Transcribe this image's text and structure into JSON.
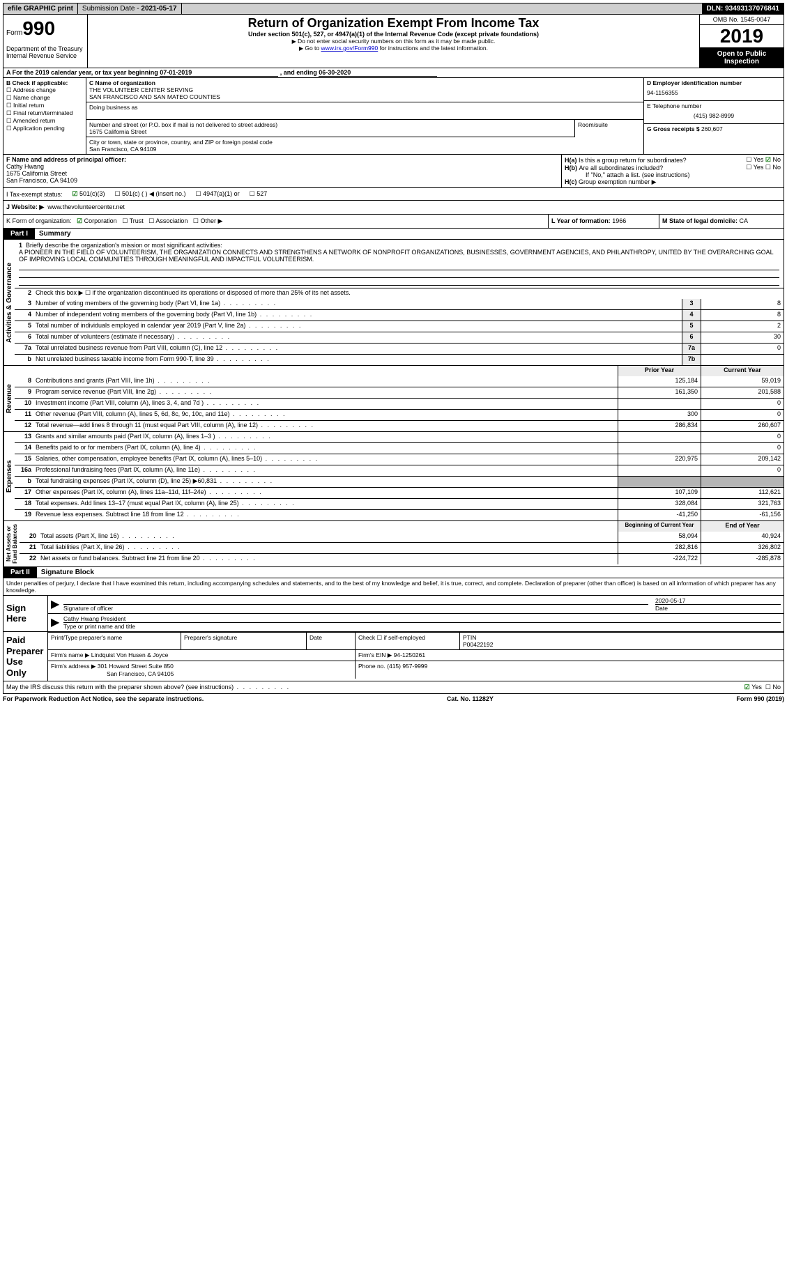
{
  "topbar": {
    "efile": "efile GRAPHIC print",
    "sub_label": "Submission Date -",
    "sub_date": "2021-05-17",
    "dln_label": "DLN:",
    "dln": "93493137076841"
  },
  "header": {
    "form_word": "Form",
    "form_num": "990",
    "dept": "Department of the Treasury\nInternal Revenue Service",
    "title": "Return of Organization Exempt From Income Tax",
    "sub1": "Under section 501(c), 527, or 4947(a)(1) of the Internal Revenue Code (except private foundations)",
    "sub2": "Do not enter social security numbers on this form as it may be made public.",
    "sub3_pre": "Go to ",
    "sub3_link": "www.irs.gov/Form990",
    "sub3_post": " for instructions and the latest information.",
    "omb": "OMB No. 1545-0047",
    "year": "2019",
    "opi": "Open to Public Inspection"
  },
  "line_a": {
    "text_pre": "A  For the 2019 calendar year, or tax year beginning ",
    "begin": "07-01-2019",
    "mid": " , and ending ",
    "end": "06-30-2020"
  },
  "box_b": {
    "hdr": "B Check if applicable:",
    "items": [
      "Address change",
      "Name change",
      "Initial return",
      "Final return/terminated",
      "Amended return",
      "Application pending"
    ]
  },
  "box_c": {
    "hdr": "C Name of organization",
    "name1": "THE VOLUNTEER CENTER SERVING",
    "name2": "SAN FRANCISCO AND SAN MATEO COUNTIES",
    "dba_hdr": "Doing business as",
    "street_hdr": "Number and street (or P.O. box if mail is not delivered to street address)",
    "room_hdr": "Room/suite",
    "street": "1675 California Street",
    "city_hdr": "City or town, state or province, country, and ZIP or foreign postal code",
    "city": "San Francisco, CA  94109"
  },
  "box_d": {
    "hdr": "D Employer identification number",
    "val": "94-1156355"
  },
  "box_e": {
    "hdr": "E Telephone number",
    "val": "(415) 982-8999"
  },
  "box_g": {
    "hdr": "G Gross receipts $",
    "val": "260,607"
  },
  "box_f": {
    "hdr": "F  Name and address of principal officer:",
    "name": "Cathy Hwang",
    "addr1": "1675 California Street",
    "addr2": "San Francisco, CA  94109"
  },
  "box_h": {
    "a_q": "Is this a group return for subordinates?",
    "a_lbl": "H(a)",
    "b_lbl": "H(b)",
    "b_q": "Are all subordinates included?",
    "b_note": "If \"No,\" attach a list. (see instructions)",
    "c_lbl": "H(c)",
    "c_q": "Group exemption number ▶",
    "yes": "Yes",
    "no": "No"
  },
  "tax_exempt": {
    "lbl": "I   Tax-exempt status:",
    "opts": [
      "501(c)(3)",
      "501(c) (  ) ◀ (insert no.)",
      "4947(a)(1) or",
      "527"
    ]
  },
  "website": {
    "lbl": "J   Website: ▶",
    "val": "www.thevolunteercenter.net"
  },
  "korg": {
    "lbl": "K Form of organization:",
    "opts": [
      "Corporation",
      "Trust",
      "Association",
      "Other ▶"
    ],
    "l_lbl": "L Year of formation:",
    "l_val": "1966",
    "m_lbl": "M State of legal domicile:",
    "m_val": "CA"
  },
  "part1": {
    "hdr": "Part I",
    "title": "Summary",
    "q1_pre": "Briefly describe the organization's mission or most significant activities:",
    "mission": "A PIONEER IN THE FIELD OF VOLUNTEERISM, THE ORGANIZATION CONNECTS AND STRENGTHENS A NETWORK OF NONPROFIT ORGANIZATIONS, BUSINESSES, GOVERNMENT AGENCIES, AND PHILANTHROPY, UNITED BY THE OVERARCHING GOAL OF IMPROVING LOCAL COMMUNITIES THROUGH MEANINGFUL AND IMPACTFUL VOLUNTEERISM.",
    "q2": "Check this box ▶ ☐  if the organization discontinued its operations or disposed of more than 25% of its net assets.",
    "rows_ag": [
      {
        "n": "3",
        "t": "Number of voting members of the governing body (Part VI, line 1a)",
        "box": "3",
        "v": "8"
      },
      {
        "n": "4",
        "t": "Number of independent voting members of the governing body (Part VI, line 1b)",
        "box": "4",
        "v": "8"
      },
      {
        "n": "5",
        "t": "Total number of individuals employed in calendar year 2019 (Part V, line 2a)",
        "box": "5",
        "v": "2"
      },
      {
        "n": "6",
        "t": "Total number of volunteers (estimate if necessary)",
        "box": "6",
        "v": "30"
      },
      {
        "n": "7a",
        "t": "Total unrelated business revenue from Part VIII, column (C), line 12",
        "box": "7a",
        "v": "0"
      },
      {
        "n": "b",
        "t": "Net unrelated business taxable income from Form 990-T, line 39",
        "box": "7b",
        "v": ""
      }
    ],
    "col_hdr": {
      "prior": "Prior Year",
      "current": "Current Year"
    },
    "rev": [
      {
        "n": "8",
        "t": "Contributions and grants (Part VIII, line 1h)",
        "p": "125,184",
        "c": "59,019"
      },
      {
        "n": "9",
        "t": "Program service revenue (Part VIII, line 2g)",
        "p": "161,350",
        "c": "201,588"
      },
      {
        "n": "10",
        "t": "Investment income (Part VIII, column (A), lines 3, 4, and 7d )",
        "p": "",
        "c": "0"
      },
      {
        "n": "11",
        "t": "Other revenue (Part VIII, column (A), lines 5, 6d, 8c, 9c, 10c, and 11e)",
        "p": "300",
        "c": "0"
      },
      {
        "n": "12",
        "t": "Total revenue—add lines 8 through 11 (must equal Part VIII, column (A), line 12)",
        "p": "286,834",
        "c": "260,607"
      }
    ],
    "exp": [
      {
        "n": "13",
        "t": "Grants and similar amounts paid (Part IX, column (A), lines 1–3 )",
        "p": "",
        "c": "0"
      },
      {
        "n": "14",
        "t": "Benefits paid to or for members (Part IX, column (A), line 4)",
        "p": "",
        "c": "0"
      },
      {
        "n": "15",
        "t": "Salaries, other compensation, employee benefits (Part IX, column (A), lines 5–10)",
        "p": "220,975",
        "c": "209,142"
      },
      {
        "n": "16a",
        "t": "Professional fundraising fees (Part IX, column (A), line 11e)",
        "p": "",
        "c": "0"
      },
      {
        "n": "b",
        "t": "Total fundraising expenses (Part IX, column (D), line 25) ▶60,831",
        "p": "shade",
        "c": "shade"
      },
      {
        "n": "17",
        "t": "Other expenses (Part IX, column (A), lines 11a–11d, 11f–24e)",
        "p": "107,109",
        "c": "112,621"
      },
      {
        "n": "18",
        "t": "Total expenses. Add lines 13–17 (must equal Part IX, column (A), line 25)",
        "p": "328,084",
        "c": "321,763"
      },
      {
        "n": "19",
        "t": "Revenue less expenses. Subtract line 18 from line 12",
        "p": "-41,250",
        "c": "-61,156"
      }
    ],
    "na_hdr": {
      "prior": "Beginning of Current Year",
      "current": "End of Year"
    },
    "na": [
      {
        "n": "20",
        "t": "Total assets (Part X, line 16)",
        "p": "58,094",
        "c": "40,924"
      },
      {
        "n": "21",
        "t": "Total liabilities (Part X, line 26)",
        "p": "282,816",
        "c": "326,802"
      },
      {
        "n": "22",
        "t": "Net assets or fund balances. Subtract line 21 from line 20",
        "p": "-224,722",
        "c": "-285,878"
      }
    ],
    "vlabels": {
      "ag": "Activities & Governance",
      "rev": "Revenue",
      "exp": "Expenses",
      "na": "Net Assets or\nFund Balances"
    }
  },
  "part2": {
    "hdr": "Part II",
    "title": "Signature Block",
    "perjury": "Under penalties of perjury, I declare that I have examined this return, including accompanying schedules and statements, and to the best of my knowledge and belief, it is true, correct, and complete. Declaration of preparer (other than officer) is based on all information of which preparer has any knowledge.",
    "sign_here": "Sign Here",
    "sig_officer": "Signature of officer",
    "date": "Date",
    "sig_date": "2020-05-17",
    "name_title_lbl": "Type or print name and title",
    "name_title": "Cathy Hwang  President",
    "paid": "Paid Preparer Use Only",
    "p_name_hdr": "Print/Type preparer's name",
    "p_sig_hdr": "Preparer's signature",
    "p_date_hdr": "Date",
    "p_check": "Check ☐ if self-employed",
    "ptin_hdr": "PTIN",
    "ptin": "P00422192",
    "firm_name_lbl": "Firm's name    ▶",
    "firm_name": "Lindquist Von Husen & Joyce",
    "firm_ein_lbl": "Firm's EIN ▶",
    "firm_ein": "94-1250261",
    "firm_addr_lbl": "Firm's address ▶",
    "firm_addr1": "301 Howard Street Suite 850",
    "firm_addr2": "San Francisco, CA  94105",
    "phone_lbl": "Phone no.",
    "phone": "(415) 957-9999",
    "discuss": "May the IRS discuss this return with the preparer shown above? (see instructions)",
    "yes": "Yes",
    "no": "No"
  },
  "footer": {
    "left": "For Paperwork Reduction Act Notice, see the separate instructions.",
    "mid": "Cat. No. 11282Y",
    "right": "Form 990 (2019)"
  }
}
